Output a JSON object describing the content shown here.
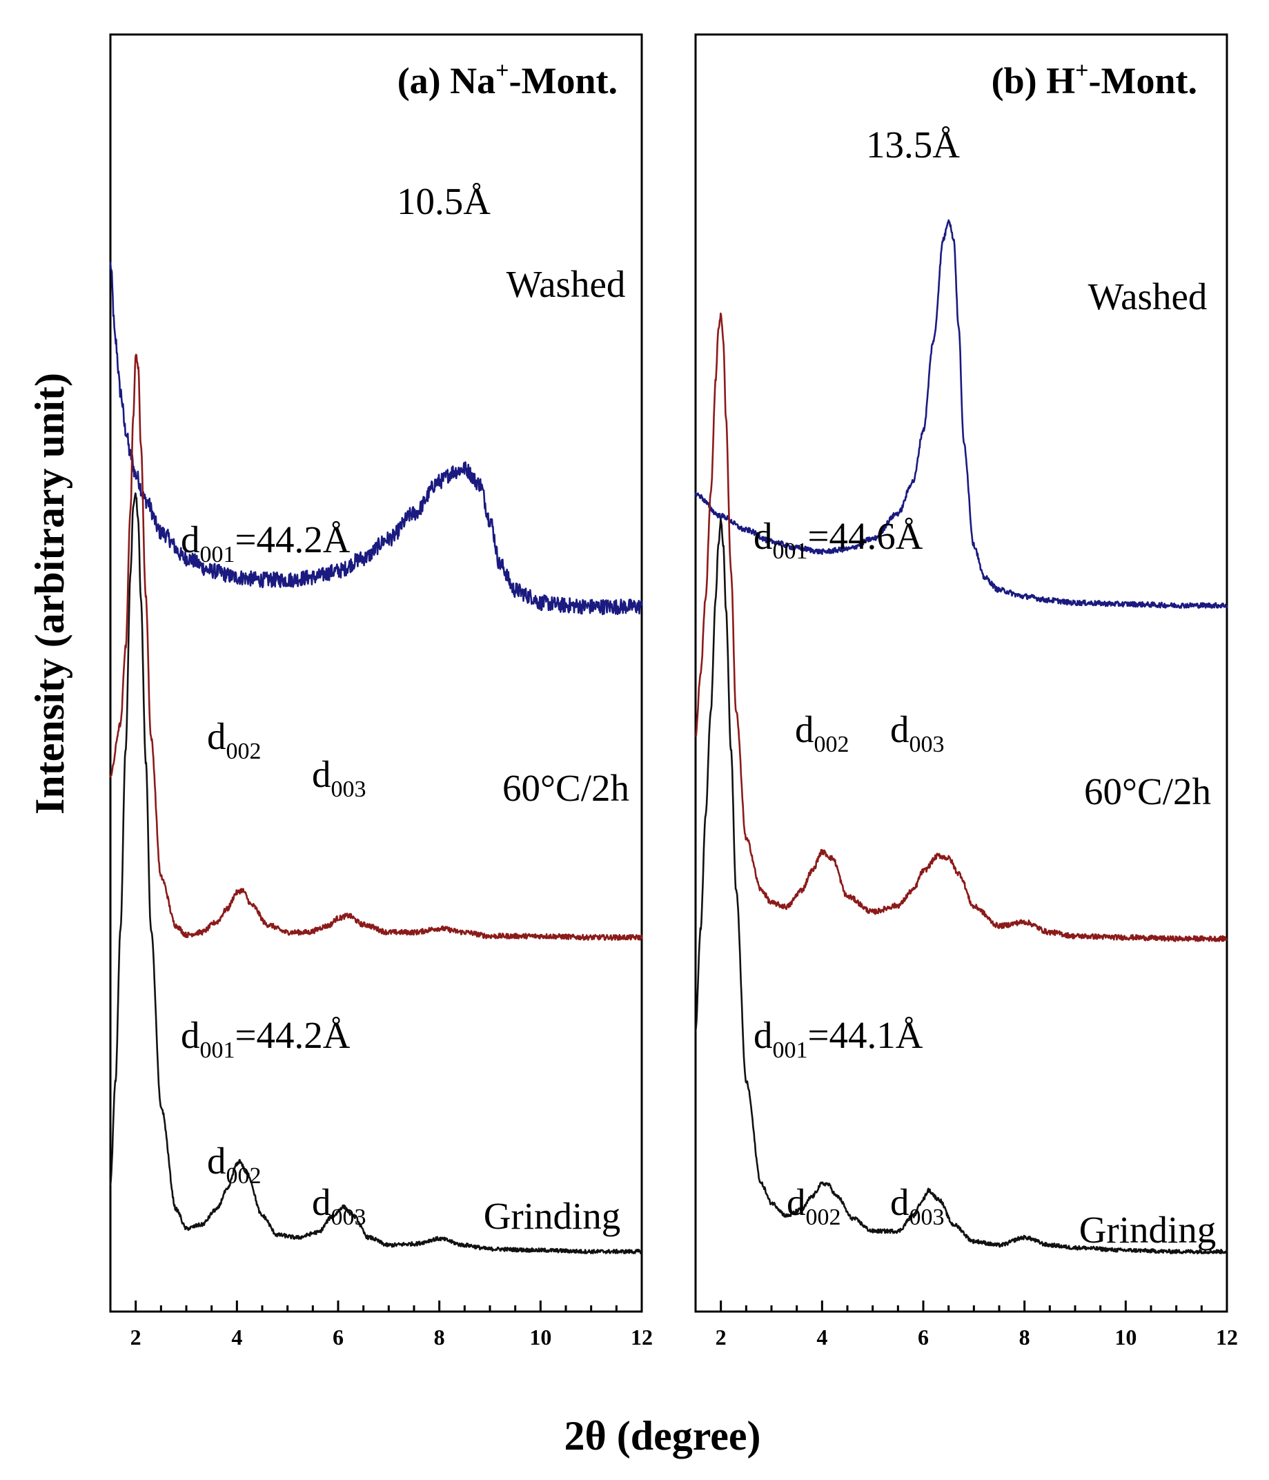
{
  "chart_data": [
    {
      "type": "line",
      "title": "(a) Na⁺-Mont.",
      "title_parts": {
        "pre": "(a) Na",
        "sup": "+",
        "post": "-Mont."
      },
      "xlabel": "2θ (degree)",
      "ylabel": "Intensity (arbitrary unit)",
      "xlim": [
        1.5,
        12
      ],
      "xticks": [
        2,
        4,
        6,
        8,
        10,
        12
      ],
      "xtick_labels": [
        "2",
        "4",
        "6",
        "8",
        "10",
        "12"
      ],
      "ylim": [
        0,
        1
      ],
      "series": [
        {
          "name": "Washed",
          "color": "#1a1a80",
          "label": "Washed",
          "x": [
            1.5,
            1.6,
            1.7,
            1.8,
            1.9,
            2.0,
            2.2,
            2.5,
            3.0,
            3.5,
            4.0,
            4.5,
            5.0,
            5.5,
            6.0,
            6.5,
            7.0,
            7.5,
            8.0,
            8.3,
            8.5,
            8.8,
            9.0,
            9.2,
            9.5,
            9.8,
            10.0,
            10.5,
            11.0,
            11.5,
            12.0
          ],
          "y": [
            0.82,
            0.76,
            0.72,
            0.69,
            0.67,
            0.655,
            0.635,
            0.61,
            0.59,
            0.58,
            0.575,
            0.573,
            0.573,
            0.575,
            0.58,
            0.59,
            0.605,
            0.625,
            0.65,
            0.658,
            0.66,
            0.648,
            0.62,
            0.585,
            0.565,
            0.56,
            0.555,
            0.553,
            0.552,
            0.552,
            0.552
          ],
          "noise": 0.006
        },
        {
          "name": "60°C/2h",
          "color": "#8b1a1a",
          "label": "60°C/2h",
          "x": [
            1.5,
            1.7,
            1.8,
            1.9,
            1.95,
            2.0,
            2.05,
            2.1,
            2.2,
            2.3,
            2.5,
            2.8,
            3.0,
            3.3,
            3.6,
            3.8,
            4.0,
            4.1,
            4.3,
            4.6,
            5.0,
            5.4,
            5.8,
            6.0,
            6.2,
            6.5,
            7.0,
            7.5,
            8.0,
            8.5,
            9.0,
            10.0,
            11.0,
            12.0
          ],
          "y": [
            0.42,
            0.46,
            0.52,
            0.63,
            0.7,
            0.75,
            0.74,
            0.68,
            0.56,
            0.45,
            0.34,
            0.302,
            0.295,
            0.297,
            0.305,
            0.315,
            0.328,
            0.33,
            0.318,
            0.303,
            0.297,
            0.297,
            0.302,
            0.308,
            0.31,
            0.303,
            0.297,
            0.297,
            0.3,
            0.297,
            0.294,
            0.294,
            0.293,
            0.293
          ],
          "noise": 0.002
        },
        {
          "name": "Grinding",
          "color": "#111111",
          "label": "Grinding",
          "x": [
            1.5,
            1.6,
            1.7,
            1.8,
            1.9,
            1.95,
            2.0,
            2.05,
            2.1,
            2.2,
            2.3,
            2.5,
            2.8,
            3.0,
            3.3,
            3.6,
            3.8,
            4.0,
            4.05,
            4.2,
            4.5,
            4.8,
            5.2,
            5.6,
            5.9,
            6.1,
            6.3,
            6.6,
            7.0,
            7.5,
            8.0,
            8.5,
            9.0,
            10.0,
            11.0,
            12.0
          ],
          "y": [
            0.1,
            0.18,
            0.3,
            0.44,
            0.58,
            0.63,
            0.64,
            0.62,
            0.56,
            0.43,
            0.3,
            0.16,
            0.08,
            0.065,
            0.068,
            0.08,
            0.095,
            0.115,
            0.118,
            0.108,
            0.075,
            0.06,
            0.058,
            0.062,
            0.075,
            0.082,
            0.075,
            0.058,
            0.052,
            0.053,
            0.057,
            0.052,
            0.049,
            0.048,
            0.047,
            0.047
          ],
          "noise": 0.0015
        }
      ],
      "annotations": [
        {
          "main": "10.5Å",
          "sub": "",
          "tail": "",
          "x": 8.5,
          "y": 0.78
        },
        {
          "main": "d",
          "sub": "001",
          "tail": "=44.2Å",
          "x": 3.7,
          "y": 0.58
        },
        {
          "main": "d",
          "sub": "002",
          "tail": "",
          "x": 4.05,
          "y": 0.36
        },
        {
          "main": "d",
          "sub": "003",
          "tail": "",
          "x": 6.2,
          "y": 0.325
        },
        {
          "main": "d",
          "sub": "001",
          "tail": "=44.2Å",
          "x": 3.7,
          "y": 0.185
        },
        {
          "main": "d",
          "sub": "002",
          "tail": "",
          "x": 4.0,
          "y": 0.15
        },
        {
          "main": "d",
          "sub": "003",
          "tail": "",
          "x": 6.2,
          "y": 0.1
        }
      ],
      "legend": "inline labels at right of each trace"
    },
    {
      "type": "line",
      "title": "(b) H⁺-Mont.",
      "title_parts": {
        "pre": "(b) H",
        "sup": "+",
        "post": "-Mont."
      },
      "xlabel": "2θ (degree)",
      "ylabel": "Intensity (arbitrary unit)",
      "xlim": [
        1.5,
        12
      ],
      "xticks": [
        2,
        4,
        6,
        8,
        10,
        12
      ],
      "xtick_labels": [
        "2",
        "4",
        "6",
        "8",
        "10",
        "12"
      ],
      "ylim": [
        0,
        1
      ],
      "series": [
        {
          "name": "Washed",
          "color": "#1a1a80",
          "label": "Washed",
          "x": [
            1.5,
            2.0,
            2.5,
            3.0,
            3.5,
            4.0,
            4.5,
            5.0,
            5.5,
            5.8,
            6.0,
            6.2,
            6.4,
            6.5,
            6.6,
            6.7,
            6.8,
            7.0,
            7.2,
            7.5,
            8.0,
            8.5,
            9.0,
            10.0,
            11.0,
            12.0
          ],
          "y": [
            0.64,
            0.623,
            0.612,
            0.603,
            0.598,
            0.595,
            0.597,
            0.605,
            0.625,
            0.65,
            0.69,
            0.76,
            0.84,
            0.855,
            0.84,
            0.77,
            0.68,
            0.6,
            0.575,
            0.565,
            0.56,
            0.557,
            0.555,
            0.554,
            0.553,
            0.553
          ],
          "noise": 0.002
        },
        {
          "name": "60°C/2h",
          "color": "#8b1a1a",
          "label": "60°C/2h",
          "x": [
            1.5,
            1.6,
            1.7,
            1.8,
            1.9,
            1.95,
            2.0,
            2.05,
            2.1,
            2.2,
            2.3,
            2.5,
            2.8,
            3.0,
            3.3,
            3.6,
            3.8,
            4.0,
            4.2,
            4.5,
            5.0,
            5.5,
            5.8,
            6.0,
            6.3,
            6.5,
            6.7,
            7.0,
            7.5,
            8.0,
            8.5,
            9.0,
            10.0,
            11.0,
            12.0
          ],
          "y": [
            0.45,
            0.5,
            0.56,
            0.64,
            0.73,
            0.77,
            0.78,
            0.76,
            0.7,
            0.58,
            0.47,
            0.37,
            0.33,
            0.32,
            0.317,
            0.33,
            0.345,
            0.36,
            0.355,
            0.325,
            0.313,
            0.318,
            0.33,
            0.345,
            0.357,
            0.355,
            0.343,
            0.317,
            0.302,
            0.305,
            0.297,
            0.294,
            0.293,
            0.292,
            0.292
          ],
          "noise": 0.002
        },
        {
          "name": "Grinding",
          "color": "#111111",
          "label": "Grinding",
          "x": [
            1.5,
            1.6,
            1.7,
            1.8,
            1.9,
            1.95,
            2.0,
            2.05,
            2.1,
            2.2,
            2.3,
            2.5,
            2.8,
            3.0,
            3.3,
            3.6,
            3.8,
            4.0,
            4.1,
            4.3,
            4.6,
            5.0,
            5.5,
            5.8,
            6.0,
            6.1,
            6.3,
            6.6,
            7.0,
            7.5,
            8.0,
            8.5,
            9.0,
            10.0,
            11.0,
            12.0
          ],
          "y": [
            0.22,
            0.3,
            0.39,
            0.47,
            0.56,
            0.6,
            0.62,
            0.6,
            0.55,
            0.44,
            0.33,
            0.18,
            0.1,
            0.085,
            0.075,
            0.08,
            0.09,
            0.1,
            0.1,
            0.09,
            0.073,
            0.063,
            0.063,
            0.075,
            0.088,
            0.095,
            0.088,
            0.068,
            0.055,
            0.052,
            0.058,
            0.052,
            0.05,
            0.048,
            0.047,
            0.047
          ],
          "noise": 0.0015
        }
      ],
      "annotations": [
        {
          "main": "13.5Å",
          "sub": "",
          "tail": "",
          "x": 6.5,
          "y": 0.9
        },
        {
          "main": "d",
          "sub": "001",
          "tail": "=44.6Å",
          "x": 3.3,
          "y": 0.575
        },
        {
          "main": "d",
          "sub": "002",
          "tail": "",
          "x": 4.1,
          "y": 0.39
        },
        {
          "main": "d",
          "sub": "003",
          "tail": "",
          "x": 6.0,
          "y": 0.39
        },
        {
          "main": "d",
          "sub": "001",
          "tail": "=44.1Å",
          "x": 3.3,
          "y": 0.2
        },
        {
          "main": "d",
          "sub": "002",
          "tail": "",
          "x": 4.0,
          "y": 0.14
        },
        {
          "main": "d",
          "sub": "003",
          "tail": "",
          "x": 6.0,
          "y": 0.14
        }
      ],
      "legend": "inline labels at right of each trace"
    }
  ],
  "figure": {
    "ylabel": "Intensity (arbitrary unit)",
    "xlabel": "2θ (degree)"
  }
}
